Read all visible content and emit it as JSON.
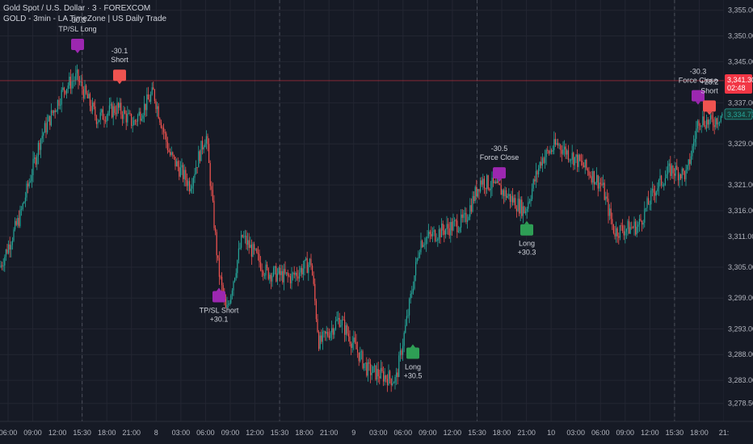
{
  "header": {
    "symbol_line": "Gold Spot / U.S. Dollar · 3 · FOREXCOM",
    "indicator_line": "GOLD - 3min - LA TimeZone | US Daily Trade"
  },
  "colors": {
    "background": "#161a25",
    "grid": "#232632",
    "up": "#26a69a",
    "down": "#ef5350",
    "long_marker": "#2e9e55",
    "short_marker": "#ef5350",
    "force_close_marker": "#9c27b0",
    "tpsl_marker": "#9c27b0",
    "price_line": "#f23645",
    "last_price": "#26a69a"
  },
  "chart_data": {
    "type": "candlestick",
    "title": "Gold Spot / U.S. Dollar · 3 · FOREXCOM",
    "ylim": [
      3275,
      3357
    ],
    "y_ticks": [
      "3,355.00",
      "3,350.00",
      "3,345.00",
      "3,337.00",
      "3,329.00",
      "3,321.00",
      "3,316.00",
      "3,311.00",
      "3,305.00",
      "3,299.00",
      "3,293.00",
      "3,288.00",
      "3,283.00",
      "3,278.50"
    ],
    "y_tick_values": [
      3355,
      3350,
      3345,
      3337,
      3329,
      3321,
      3316,
      3311,
      3305,
      3299,
      3293,
      3288,
      3283,
      3278.5
    ],
    "x_tick_labels": [
      "06:00",
      "09:00",
      "12:00",
      "15:30",
      "18:00",
      "21:00",
      "8",
      "03:00",
      "06:00",
      "09:00",
      "12:00",
      "15:30",
      "18:00",
      "21:00",
      "9",
      "03:00",
      "06:00",
      "09:00",
      "12:00",
      "15:30",
      "18:00",
      "21:00",
      "10",
      "03:00",
      "06:00",
      "09:00",
      "12:00",
      "15:30",
      "18:00",
      "21:"
    ],
    "price_path": [
      [
        0,
        3305
      ],
      [
        25,
        3315
      ],
      [
        50,
        3330
      ],
      [
        80,
        3340
      ],
      [
        95,
        3342
      ],
      [
        120,
        3334
      ],
      [
        145,
        3336
      ],
      [
        165,
        3333
      ],
      [
        190,
        3339
      ],
      [
        210,
        3327
      ],
      [
        235,
        3321
      ],
      [
        255,
        3331
      ],
      [
        270,
        3305
      ],
      [
        280,
        3296
      ],
      [
        300,
        3311
      ],
      [
        330,
        3304
      ],
      [
        360,
        3303
      ],
      [
        385,
        3306
      ],
      [
        395,
        3290
      ],
      [
        420,
        3295
      ],
      [
        455,
        3285
      ],
      [
        490,
        3283
      ],
      [
        505,
        3296
      ],
      [
        520,
        3310
      ],
      [
        545,
        3312
      ],
      [
        575,
        3314
      ],
      [
        595,
        3322
      ],
      [
        620,
        3320
      ],
      [
        650,
        3316
      ],
      [
        670,
        3326
      ],
      [
        690,
        3329
      ],
      [
        720,
        3325
      ],
      [
        745,
        3321
      ],
      [
        760,
        3312
      ],
      [
        790,
        3313
      ],
      [
        810,
        3320
      ],
      [
        830,
        3324
      ],
      [
        850,
        3323
      ],
      [
        865,
        3334
      ],
      [
        880,
        3333
      ],
      [
        895,
        3335
      ]
    ],
    "trades": [
      {
        "kind": "force_close",
        "label": "TP/SL Long",
        "pnl": "-30.3",
        "x": 96,
        "price": 3346,
        "marker": "TP/SL"
      },
      {
        "kind": "short",
        "label": "Short",
        "pnl": "-30.1",
        "x": 148,
        "price": 3340,
        "marker": "Short"
      },
      {
        "kind": "tpsl_short",
        "label": "TP/SL Short",
        "pnl": "+30.1",
        "x": 271,
        "price": 3301,
        "marker": "TP/SL"
      },
      {
        "kind": "long",
        "label": "Long",
        "pnl": "+30.5",
        "x": 511,
        "price": 3290,
        "marker": "Long"
      },
      {
        "kind": "force_close",
        "label": "Force Close",
        "pnl": "-30.5",
        "x": 618,
        "price": 3321,
        "marker": "Force"
      },
      {
        "kind": "long",
        "label": "Long",
        "pnl": "+30.3",
        "x": 652,
        "price": 3314,
        "marker": "Long"
      },
      {
        "kind": "force_close",
        "label": "Force Close",
        "pnl": "-30.3",
        "x": 864,
        "price": 3336,
        "marker": "Force"
      },
      {
        "kind": "short",
        "label": "Short",
        "pnl": "+28.2",
        "x": 878,
        "price": 3334,
        "marker": "Short"
      }
    ],
    "red_line_price": 3341.3,
    "current_price_badge": {
      "price": "3,341.30",
      "time": "02:48"
    },
    "last_price_badge": {
      "price": "3,334.71"
    }
  }
}
